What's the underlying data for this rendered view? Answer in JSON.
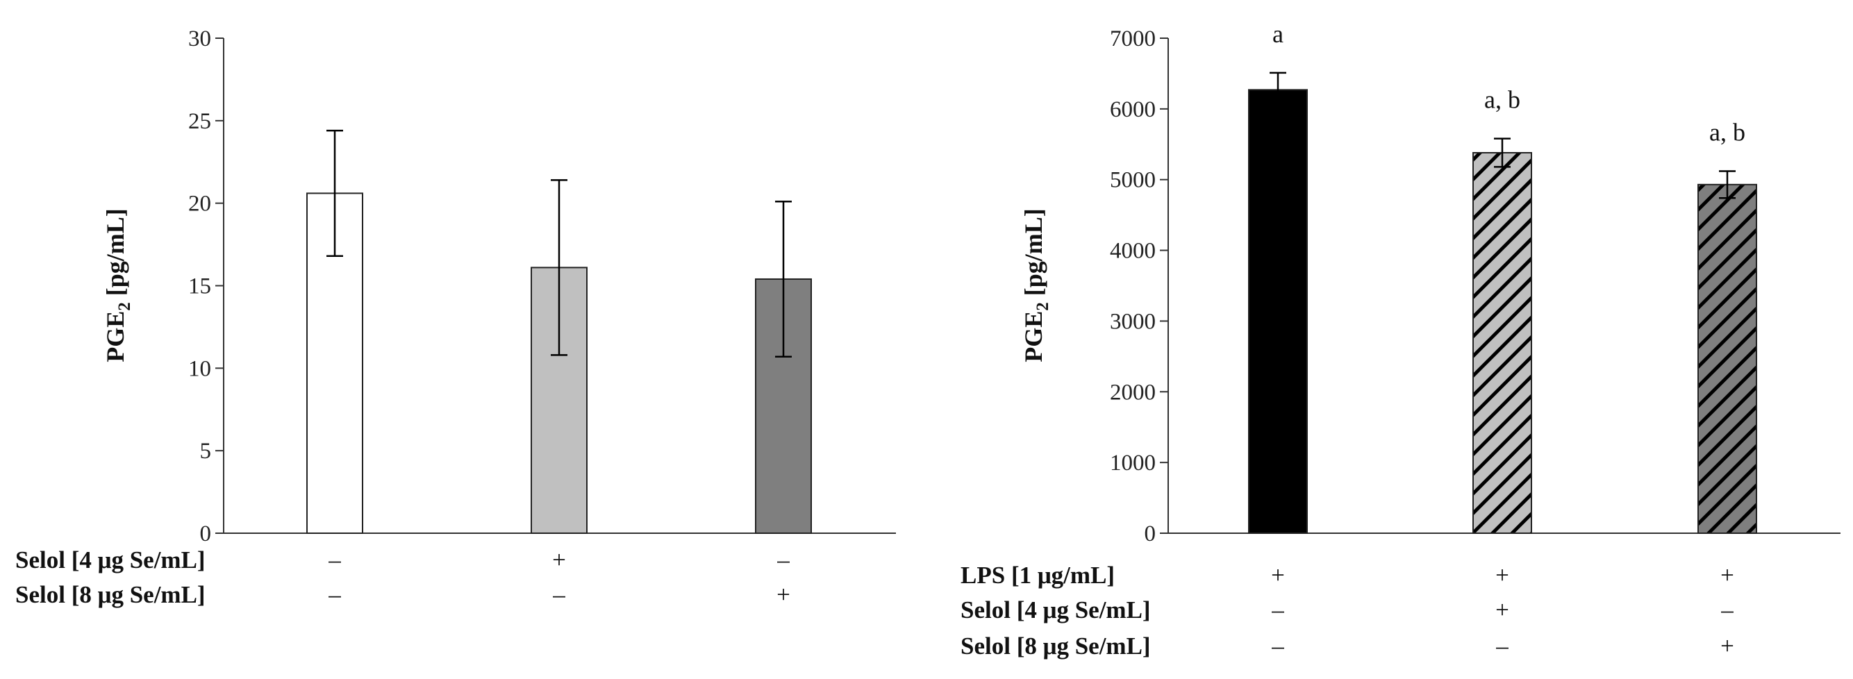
{
  "chart_data": [
    {
      "type": "bar",
      "ylabel": "PGE2 [pg/mL]",
      "ylabel_main": "PGE",
      "ylabel_sub": "2",
      "ylabel_rest": " [pg/mL]",
      "ylim": [
        0,
        30
      ],
      "yticks": [
        "0",
        "5",
        "10",
        "15",
        "20",
        "25",
        "30"
      ],
      "grid": false,
      "values": [
        20.6,
        16.1,
        15.4
      ],
      "errors": [
        3.8,
        5.3,
        4.7
      ],
      "fills": [
        "#ffffff",
        "#c0c0c0",
        "#7f7f7f"
      ],
      "patterns": [
        "none",
        "none",
        "none"
      ],
      "annotations": [
        "",
        "",
        ""
      ],
      "conditions": [
        {
          "label": "Selol [4 μg Se/mL]",
          "symbols": [
            "–",
            "+",
            "–"
          ]
        },
        {
          "label": "Selol [8 μg Se/mL]",
          "symbols": [
            "–",
            "–",
            "+"
          ]
        }
      ]
    },
    {
      "type": "bar",
      "ylabel": "PGE2 [pg/mL]",
      "ylabel_main": "PGE",
      "ylabel_sub": "2",
      "ylabel_rest": " [pg/mL]",
      "ylim": [
        0,
        7000
      ],
      "yticks": [
        "0",
        "1000",
        "2000",
        "3000",
        "4000",
        "5000",
        "6000",
        "7000"
      ],
      "grid": false,
      "values": [
        6270,
        5380,
        4930
      ],
      "errors": [
        240,
        200,
        190
      ],
      "fills": [
        "#000000",
        "#c0c0c0",
        "#7f7f7f"
      ],
      "patterns": [
        "none",
        "hatch",
        "hatch"
      ],
      "annotations": [
        "a",
        "a, b",
        "a, b"
      ],
      "conditions": [
        {
          "label": "LPS [1 μg/mL]",
          "symbols": [
            "+",
            "+",
            "+"
          ]
        },
        {
          "label": "Selol [4 μg Se/mL]",
          "symbols": [
            "–",
            "+",
            "–"
          ]
        },
        {
          "label": "Selol [8 μg Se/mL]",
          "symbols": [
            "–",
            "–",
            "+"
          ]
        }
      ]
    }
  ]
}
